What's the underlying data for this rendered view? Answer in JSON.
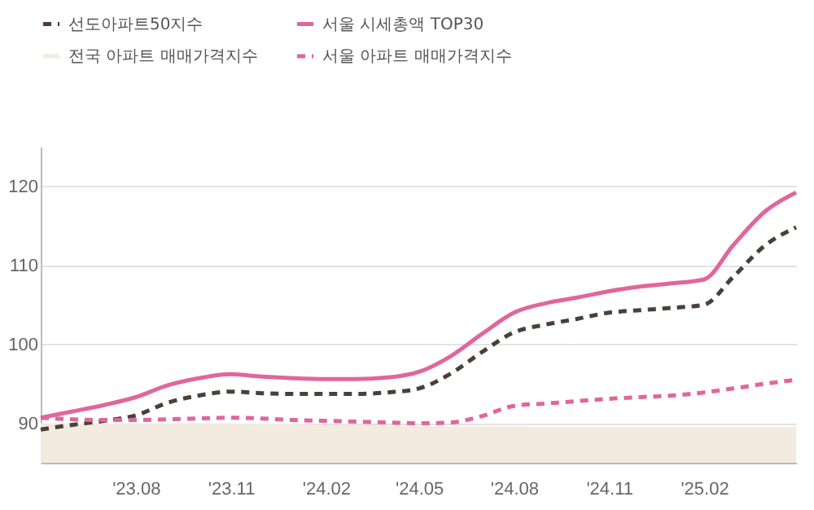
{
  "chart_data": {
    "type": "line",
    "x": [
      "2023-05",
      "2023-06",
      "2023-07",
      "2023-08",
      "2023-09",
      "2023-10",
      "2023-11",
      "2023-12",
      "2024-01",
      "2024-02",
      "2024-03",
      "2024-04",
      "2024-05",
      "2024-06",
      "2024-07",
      "2024-08",
      "2024-09",
      "2024-10",
      "2024-11",
      "2024-12",
      "2025-01",
      "2025-02",
      "2025-03",
      "2025-04",
      "2025-05"
    ],
    "series": [
      {
        "name": "선도아파트50지수",
        "line_style": "dashed",
        "color": "#4a4039",
        "values": [
          89.2,
          89.8,
          90.3,
          91.0,
          92.6,
          93.5,
          94.0,
          93.8,
          93.7,
          93.7,
          93.7,
          93.9,
          94.4,
          96.3,
          99.0,
          101.5,
          102.5,
          103.2,
          104.0,
          104.3,
          104.6,
          105.0,
          108.5,
          112.5,
          114.8
        ]
      },
      {
        "name": "서울 시세총액 TOP30",
        "line_style": "solid",
        "color": "#e0669c",
        "values": [
          90.7,
          91.5,
          92.3,
          93.3,
          94.8,
          95.7,
          96.2,
          95.9,
          95.7,
          95.6,
          95.6,
          95.8,
          96.5,
          98.5,
          101.3,
          104.0,
          105.2,
          105.9,
          106.7,
          107.3,
          107.7,
          108.2,
          112.5,
          116.8,
          119.2
        ]
      },
      {
        "name": "전국 아파트 매매가격지수",
        "type": "area",
        "color": "#f3ebe0",
        "values": [
          90.0,
          90.0,
          90.0,
          90.0,
          90.0,
          90.0,
          90.0,
          89.9,
          89.9,
          89.8,
          89.8,
          89.7,
          89.7,
          89.6,
          89.6,
          89.6,
          89.5,
          89.5,
          89.5,
          89.5,
          89.5,
          89.5,
          89.5,
          89.5,
          89.5
        ]
      },
      {
        "name": "서울 아파트 매매가격지수",
        "line_style": "dashed",
        "color": "#e0669c",
        "values": [
          90.7,
          90.5,
          90.4,
          90.4,
          90.5,
          90.6,
          90.7,
          90.6,
          90.4,
          90.3,
          90.2,
          90.1,
          90.0,
          90.1,
          90.9,
          92.2,
          92.5,
          92.8,
          93.1,
          93.3,
          93.5,
          93.9,
          94.4,
          95.0,
          95.5
        ]
      }
    ],
    "xlim": [
      "2023-05",
      "2025-05"
    ],
    "xticks": [
      {
        "value": "2023-08",
        "label": "'23.08"
      },
      {
        "value": "2023-11",
        "label": "'23.11"
      },
      {
        "value": "2024-02",
        "label": "'24.02"
      },
      {
        "value": "2024-05",
        "label": "'24.05"
      },
      {
        "value": "2024-08",
        "label": "'24.08"
      },
      {
        "value": "2024-11",
        "label": "'24.11"
      },
      {
        "value": "2025-02",
        "label": "'25.02"
      }
    ],
    "ylim": [
      85,
      125
    ],
    "yticks": [
      90,
      100,
      110,
      120
    ],
    "grid": "y",
    "legend": "top left",
    "marker": "none"
  }
}
